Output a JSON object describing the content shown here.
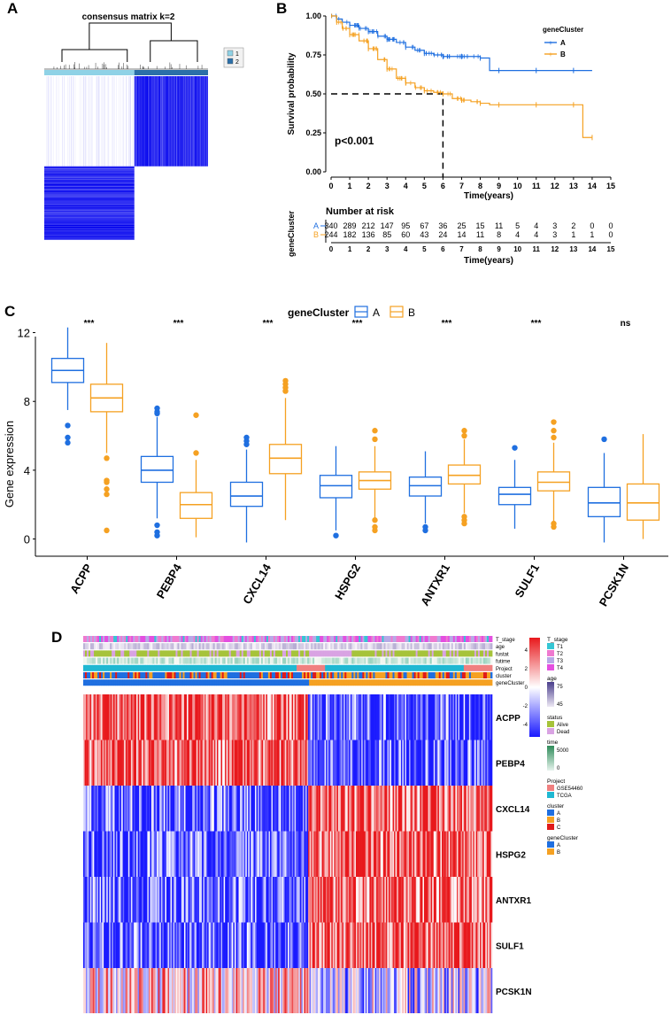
{
  "colors": {
    "blue": "#1f6fe0",
    "orange": "#f5a122",
    "heatBlue": "#1a1aff",
    "heatRed": "#e8181c",
    "consensusBlue": "#0000ee",
    "teal": "#3aa6c4",
    "navy": "#1f4e8c"
  },
  "panelA": {
    "label": "A",
    "title": "consensus matrix k=2",
    "legend": [
      {
        "label": "1",
        "color": "#8fd2e6"
      },
      {
        "label": "2",
        "color": "#2b6fa8"
      }
    ],
    "chart_data": {
      "type": "heatmap",
      "title": "consensus matrix k=2",
      "clusters": [
        "1",
        "2"
      ],
      "block_fraction": [
        0.55,
        0.45
      ],
      "description_values": {
        "within_cluster": 1,
        "between_cluster": 0
      }
    }
  },
  "panelB": {
    "label": "B",
    "chart_data": {
      "type": "line",
      "title": "",
      "xlabel": "Time(years)",
      "ylabel": "Survival probability",
      "xlim": [
        0,
        15
      ],
      "ylim": [
        0,
        1
      ],
      "xticks": [
        0,
        1,
        2,
        3,
        4,
        5,
        6,
        7,
        8,
        9,
        10,
        11,
        12,
        13,
        14,
        15
      ],
      "yticks": [
        "0.00",
        "0.25",
        "0.50",
        "0.75",
        "1.00"
      ],
      "legend_title": "geneCluster",
      "legend_position": "top-right",
      "pvalue": "p<0.001",
      "median_line": {
        "y": 0.5,
        "x": 6
      },
      "series": [
        {
          "name": "A",
          "color": "#1f6fe0",
          "x": [
            0,
            0.3,
            0.6,
            1,
            1.5,
            2,
            2.5,
            3,
            3.5,
            4,
            4.5,
            5,
            5.5,
            6,
            6.5,
            7,
            7.5,
            8,
            8.5,
            9,
            10,
            11,
            12,
            13,
            14
          ],
          "y": [
            1,
            0.98,
            0.96,
            0.94,
            0.92,
            0.9,
            0.87,
            0.85,
            0.83,
            0.8,
            0.78,
            0.76,
            0.75,
            0.74,
            0.74,
            0.74,
            0.74,
            0.73,
            0.65,
            0.65,
            0.65,
            0.65,
            0.65,
            0.65,
            0.65
          ]
        },
        {
          "name": "B",
          "color": "#f5a122",
          "x": [
            0,
            0.3,
            0.6,
            1,
            1.5,
            2,
            2.5,
            3,
            3.5,
            4,
            4.5,
            5,
            5.5,
            6,
            6.5,
            7,
            7.5,
            8,
            8.5,
            9,
            10,
            11,
            12,
            13,
            13.5,
            14
          ],
          "y": [
            1,
            0.96,
            0.92,
            0.88,
            0.84,
            0.79,
            0.72,
            0.66,
            0.6,
            0.57,
            0.54,
            0.52,
            0.51,
            0.5,
            0.47,
            0.46,
            0.45,
            0.44,
            0.43,
            0.43,
            0.43,
            0.43,
            0.43,
            0.43,
            0.22,
            0.22
          ]
        }
      ]
    },
    "risk_table": {
      "title": "Number at risk",
      "ylabel": "geneCluster",
      "xlabel": "Time(years)",
      "times": [
        "0",
        "1",
        "2",
        "3",
        "4",
        "5",
        "6",
        "7",
        "8",
        "9",
        "10",
        "11",
        "12",
        "13",
        "14",
        "15"
      ],
      "rows": [
        {
          "name": "A",
          "color": "#1f6fe0",
          "counts": [
            "340",
            "289",
            "212",
            "147",
            "95",
            "67",
            "36",
            "25",
            "15",
            "11",
            "5",
            "4",
            "3",
            "2",
            "0",
            "0"
          ]
        },
        {
          "name": "B",
          "color": "#f5a122",
          "counts": [
            "244",
            "182",
            "136",
            "85",
            "60",
            "43",
            "24",
            "14",
            "11",
            "8",
            "4",
            "4",
            "3",
            "1",
            "1",
            "0"
          ]
        }
      ]
    }
  },
  "panelC": {
    "label": "C",
    "chart_data": {
      "type": "bar",
      "subtype": "boxplot",
      "ylabel": "Gene expression",
      "ylim": [
        -1,
        12.8
      ],
      "yticks": [
        "0",
        "4",
        "8",
        "12"
      ],
      "legend_title": "geneCluster",
      "legend_position": "top",
      "categories": [
        "ACPP",
        "PEBP4",
        "CXCL14",
        "HSPG2",
        "ANTXR1",
        "SULF1",
        "PCSK1N"
      ],
      "significance": [
        "***",
        "***",
        "***",
        "***",
        "***",
        "***",
        "ns"
      ],
      "series": [
        {
          "name": "A",
          "color": "#1f6fe0",
          "boxes": [
            {
              "min": 7.5,
              "q1": 9.1,
              "median": 9.8,
              "q3": 10.5,
              "max": 12.3,
              "outliers": [
                6.6,
                5.9,
                5.6
              ]
            },
            {
              "min": 1.2,
              "q1": 3.3,
              "median": 4.0,
              "q3": 4.8,
              "max": 7.1,
              "outliers": [
                7.6,
                7.4,
                7.3,
                0.8,
                0.4,
                0.2
              ]
            },
            {
              "min": -0.2,
              "q1": 1.9,
              "median": 2.5,
              "q3": 3.3,
              "max": 5.2,
              "outliers": [
                5.9,
                5.7,
                5.5
              ]
            },
            {
              "min": 0.5,
              "q1": 2.4,
              "median": 3.1,
              "q3": 3.7,
              "max": 5.4,
              "outliers": [
                0.2
              ]
            },
            {
              "min": 0.9,
              "q1": 2.5,
              "median": 3.1,
              "q3": 3.6,
              "max": 5.1,
              "outliers": [
                0.7,
                0.5
              ]
            },
            {
              "min": 0.6,
              "q1": 2.0,
              "median": 2.6,
              "q3": 3.0,
              "max": 4.6,
              "outliers": [
                5.3
              ]
            },
            {
              "min": -0.2,
              "q1": 1.3,
              "median": 2.1,
              "q3": 3.0,
              "max": 5.0,
              "outliers": [
                5.8
              ]
            }
          ]
        },
        {
          "name": "B",
          "color": "#f5a122",
          "boxes": [
            {
              "min": 5.0,
              "q1": 7.4,
              "median": 8.2,
              "q3": 9.0,
              "max": 11.4,
              "outliers": [
                4.7,
                3.4,
                3.3,
                2.9,
                2.6,
                0.5
              ]
            },
            {
              "min": 0.1,
              "q1": 1.2,
              "median": 2.0,
              "q3": 2.7,
              "max": 4.6,
              "outliers": [
                5.0,
                7.2
              ]
            },
            {
              "min": 1.1,
              "q1": 3.8,
              "median": 4.7,
              "q3": 5.5,
              "max": 8.2,
              "outliers": [
                8.6,
                8.8,
                9.0,
                9.2
              ]
            },
            {
              "min": 1.0,
              "q1": 2.9,
              "median": 3.4,
              "q3": 3.9,
              "max": 5.4,
              "outliers": [
                5.8,
                6.3,
                1.1,
                0.7,
                0.5
              ]
            },
            {
              "min": 1.5,
              "q1": 3.2,
              "median": 3.7,
              "q3": 4.3,
              "max": 5.8,
              "outliers": [
                6.3,
                6.0,
                1.3,
                1.1,
                0.9
              ]
            },
            {
              "min": 1.0,
              "q1": 2.8,
              "median": 3.3,
              "q3": 3.9,
              "max": 5.6,
              "outliers": [
                5.9,
                6.3,
                6.8,
                0.9,
                0.7
              ]
            },
            {
              "min": 0.0,
              "q1": 1.1,
              "median": 2.1,
              "q3": 3.2,
              "max": 6.1,
              "outliers": []
            }
          ]
        }
      ]
    }
  },
  "panelD": {
    "label": "D",
    "chart_data": {
      "type": "heatmap",
      "rows": [
        "ACPP",
        "PEBP4",
        "CXCL14",
        "HSPG2",
        "ANTXR1",
        "SULF1",
        "PCSK1N"
      ],
      "row_direction_A": [
        1,
        1,
        -1,
        -1,
        -1,
        -1,
        0.3
      ],
      "annotation_tracks": [
        "T_stage",
        "age",
        "fustat",
        "futime",
        "Project",
        "cluster",
        "geneCluster"
      ],
      "geneCluster_split": 0.55,
      "color_scale": {
        "ticks": [
          "4",
          "2",
          "0",
          "-2",
          "-4"
        ],
        "min": -4,
        "max": 4
      },
      "legends": [
        {
          "title": "T_stage",
          "items": [
            {
              "label": "T1",
              "color": "#35c6d4"
            },
            {
              "label": "T2",
              "color": "#ef7ad0"
            },
            {
              "label": "T3",
              "color": "#b7a9e6"
            },
            {
              "label": "T4",
              "color": "#e44fe0"
            }
          ]
        },
        {
          "title": "age",
          "gradient": [
            "#4a3f8c",
            "#ede8f4"
          ],
          "ticks": [
            "75",
            "45"
          ]
        },
        {
          "title": "status",
          "items": [
            {
              "label": "Alive",
              "color": "#a6c33a"
            },
            {
              "label": "Dead",
              "color": "#d9a3e3"
            }
          ]
        },
        {
          "title": "time",
          "gradient": [
            "#2f8c5a",
            "#e6f3ec"
          ],
          "ticks": [
            "5000",
            "0"
          ]
        },
        {
          "title": "Project",
          "items": [
            {
              "label": "GSE54460",
              "color": "#f08080"
            },
            {
              "label": "TCGA",
              "color": "#1fb8d2"
            }
          ]
        },
        {
          "title": "cluster",
          "items": [
            {
              "label": "A",
              "color": "#1f6fe0"
            },
            {
              "label": "B",
              "color": "#f5a122"
            },
            {
              "label": "C",
              "color": "#e01a1a"
            }
          ]
        },
        {
          "title": "geneCluster",
          "items": [
            {
              "label": "A",
              "color": "#1f6fe0"
            },
            {
              "label": "B",
              "color": "#f5a122"
            }
          ]
        }
      ]
    }
  }
}
